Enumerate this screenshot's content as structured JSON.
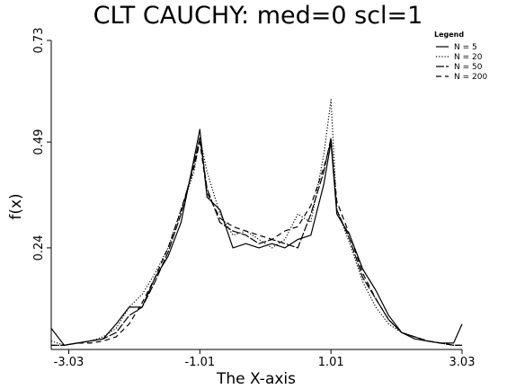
{
  "chart_data": {
    "type": "line",
    "title": "CLT CAUCHY: med=0 scl=1",
    "xlabel": "The X-axis",
    "ylabel": "f(x)",
    "xlim": [
      -3.3,
      3.03
    ],
    "ylim": [
      0,
      0.73
    ],
    "x_ticks": [
      -3.03,
      -1.01,
      1.01,
      3.03
    ],
    "x_tick_labels": [
      "-3.03",
      "-1.01",
      "1.01",
      "3.03"
    ],
    "y_ticks": [
      0.24,
      0.49,
      0.73
    ],
    "y_tick_labels": [
      "0.24",
      "0.49",
      "0.73"
    ],
    "legend_title": "Legend",
    "legend_position": "top-right",
    "x": [
      -3.3,
      -3.1,
      -2.9,
      -2.7,
      -2.5,
      -2.3,
      -2.1,
      -1.9,
      -1.7,
      -1.5,
      -1.3,
      -1.1,
      -1.01,
      -0.9,
      -0.7,
      -0.5,
      -0.3,
      -0.1,
      0.1,
      0.3,
      0.5,
      0.7,
      0.9,
      1.01,
      1.1,
      1.3,
      1.5,
      1.7,
      1.9,
      2.1,
      2.3,
      2.5,
      2.7,
      2.9,
      3.03
    ],
    "series": [
      {
        "name": "N =   5",
        "dash": "",
        "values": [
          0.05,
          0.01,
          0.015,
          0.02,
          0.025,
          0.06,
          0.1,
          0.1,
          0.17,
          0.22,
          0.3,
          0.45,
          0.52,
          0.36,
          0.33,
          0.24,
          0.25,
          0.24,
          0.25,
          0.24,
          0.26,
          0.27,
          0.39,
          0.49,
          0.32,
          0.27,
          0.19,
          0.14,
          0.08,
          0.04,
          0.025,
          0.02,
          0.015,
          0.015,
          0.06
        ]
      },
      {
        "name": "N =  20",
        "dash": "1.2 2",
        "values": [
          0.02,
          0.01,
          0.015,
          0.02,
          0.03,
          0.05,
          0.1,
          0.13,
          0.18,
          0.24,
          0.33,
          0.42,
          0.5,
          0.42,
          0.32,
          0.27,
          0.28,
          0.26,
          0.24,
          0.26,
          0.32,
          0.3,
          0.46,
          0.59,
          0.33,
          0.25,
          0.16,
          0.1,
          0.06,
          0.04,
          0.03,
          0.02,
          0.015,
          0.01,
          0.01
        ]
      },
      {
        "name": "N =  50",
        "dash": "9 2",
        "values": [
          0.01,
          0.01,
          0.015,
          0.02,
          0.025,
          0.04,
          0.08,
          0.1,
          0.16,
          0.23,
          0.32,
          0.44,
          0.5,
          0.38,
          0.3,
          0.28,
          0.27,
          0.25,
          0.26,
          0.25,
          0.24,
          0.32,
          0.42,
          0.5,
          0.33,
          0.26,
          0.17,
          0.12,
          0.07,
          0.04,
          0.03,
          0.02,
          0.015,
          0.01,
          0.01
        ]
      },
      {
        "name": "N = 200",
        "dash": "6 4",
        "values": [
          0.01,
          0.01,
          0.015,
          0.015,
          0.02,
          0.03,
          0.06,
          0.11,
          0.17,
          0.24,
          0.33,
          0.43,
          0.49,
          0.37,
          0.31,
          0.29,
          0.28,
          0.27,
          0.26,
          0.28,
          0.29,
          0.34,
          0.43,
          0.49,
          0.35,
          0.27,
          0.18,
          0.12,
          0.07,
          0.04,
          0.03,
          0.02,
          0.015,
          0.01,
          0.01
        ]
      }
    ]
  }
}
